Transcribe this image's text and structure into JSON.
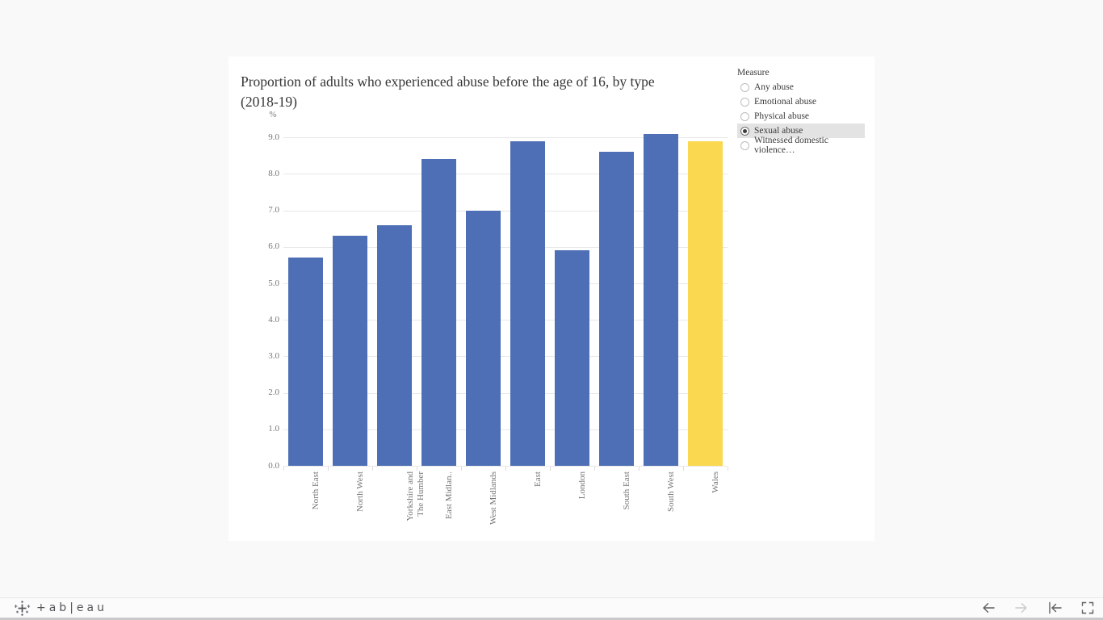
{
  "page": {
    "background": "#f9f9f9",
    "panel_background": "#ffffff"
  },
  "viz": {
    "title_lines": [
      "Proportion of adults who experienced abuse before the age of 16, by type",
      "(2018-19)"
    ],
    "axis_unit_label": "%"
  },
  "chart_data": {
    "type": "bar",
    "title": "Proportion of adults who experienced abuse before the age of 16, by type (2018-19)",
    "ylabel": "%",
    "xlabel": "",
    "ylim": [
      0,
      9
    ],
    "ytick_interval": 1.0,
    "ytick_format_decimals": 1,
    "grid": true,
    "legend": "none",
    "categories": [
      "North East",
      "North West",
      "Yorkshire and The Humber",
      "East Midlands",
      "West Midlands",
      "East",
      "London",
      "South East",
      "South West",
      "Wales"
    ],
    "category_display_labels": [
      "North East",
      "North West",
      "Yorkshire and\nThe Humber",
      "East Midlan..",
      "West Midlands",
      "East",
      "London",
      "South East",
      "South West",
      "Wales"
    ],
    "values": [
      5.7,
      6.3,
      6.6,
      8.4,
      7.0,
      8.9,
      5.9,
      8.6,
      9.1,
      8.9
    ],
    "bar_color": "#4e6fb5",
    "highlight_category": "Wales",
    "highlight_color": "#fad84f",
    "gridline_color": "#e8e8e8",
    "axis_text_color": "#767676"
  },
  "measure_panel": {
    "header": "Measure",
    "options": [
      {
        "label": "Any abuse",
        "selected": false
      },
      {
        "label": "Emotional abuse",
        "selected": false
      },
      {
        "label": "Physical abuse",
        "selected": false
      },
      {
        "label": "Sexual abuse",
        "selected": true
      },
      {
        "label": "Witnessed domestic violence…",
        "selected": false
      }
    ]
  },
  "toolbar": {
    "brand": "tableau",
    "brand_display": "+ab|eau",
    "icons": [
      {
        "name": "undo-arrow-icon",
        "enabled": true
      },
      {
        "name": "redo-arrow-icon",
        "enabled": false
      },
      {
        "name": "reset-view-icon",
        "enabled": true
      },
      {
        "name": "fullscreen-icon",
        "enabled": true
      }
    ]
  }
}
